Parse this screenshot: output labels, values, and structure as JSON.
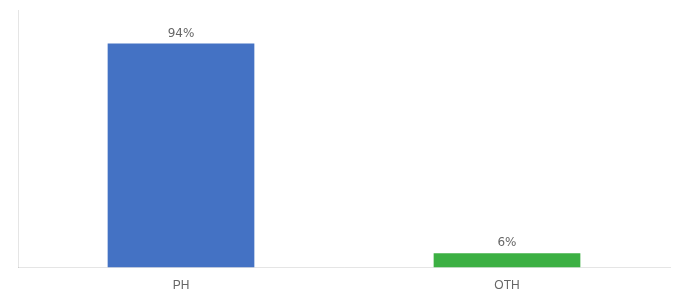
{
  "chart_data": {
    "type": "bar",
    "categories": [
      "PH",
      "OTH"
    ],
    "values": [
      94,
      6
    ],
    "value_labels": [
      "94%",
      "6%"
    ],
    "data_labels": true,
    "colors": [
      "#4472c4",
      "#3cb043"
    ],
    "ylim": [
      0,
      108
    ],
    "grid": false,
    "tick_labels": "x"
  }
}
